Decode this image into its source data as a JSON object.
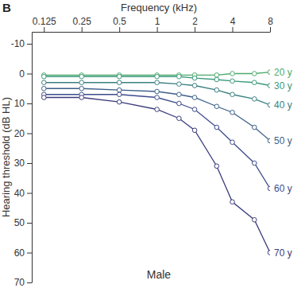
{
  "chart_data": {
    "type": "line",
    "x_label": "Frequency (kHz)",
    "y_label": "Hearing threshold (dB HL)",
    "annotations": [
      "B",
      "Male"
    ],
    "log": "x",
    "grid": false,
    "marker": "circle",
    "x": [
      0.125,
      0.25,
      0.5,
      1,
      1.5,
      2,
      3,
      4,
      6,
      8
    ],
    "xlim": [
      0.1,
      8
    ],
    "xticks": [
      0.125,
      0.25,
      0.5,
      1,
      2,
      4,
      8
    ],
    "ylim": [
      -14,
      70
    ],
    "yticks": [
      -10,
      0,
      10,
      20,
      30,
      40,
      50,
      60,
      70
    ],
    "series": [
      {
        "name": "20 y",
        "color": "#4daa6a",
        "values": [
          0.5,
          0.5,
          0.5,
          0.5,
          0.5,
          0.5,
          0.5,
          0,
          0,
          -0.5
        ]
      },
      {
        "name": "30 y",
        "color": "#3a9a7c",
        "values": [
          1,
          1,
          1,
          1,
          1,
          1.5,
          2,
          2.5,
          3,
          4
        ]
      },
      {
        "name": "40 y",
        "color": "#3b7f82",
        "values": [
          3,
          3,
          3,
          3,
          3.5,
          4,
          5.5,
          7,
          8.5,
          10.5
        ]
      },
      {
        "name": "50 y",
        "color": "#3c5f88",
        "values": [
          5,
          5,
          5.5,
          6,
          7,
          8,
          11,
          13,
          18,
          22.5
        ]
      },
      {
        "name": "60 y",
        "color": "#3d4c8c",
        "values": [
          7,
          7,
          7,
          8,
          10,
          12,
          18,
          23,
          30,
          38.5
        ]
      },
      {
        "name": "70 y",
        "color": "#3b3c7c",
        "values": [
          8,
          8,
          9.5,
          12,
          15,
          19,
          31,
          43,
          49,
          60
        ]
      }
    ]
  }
}
